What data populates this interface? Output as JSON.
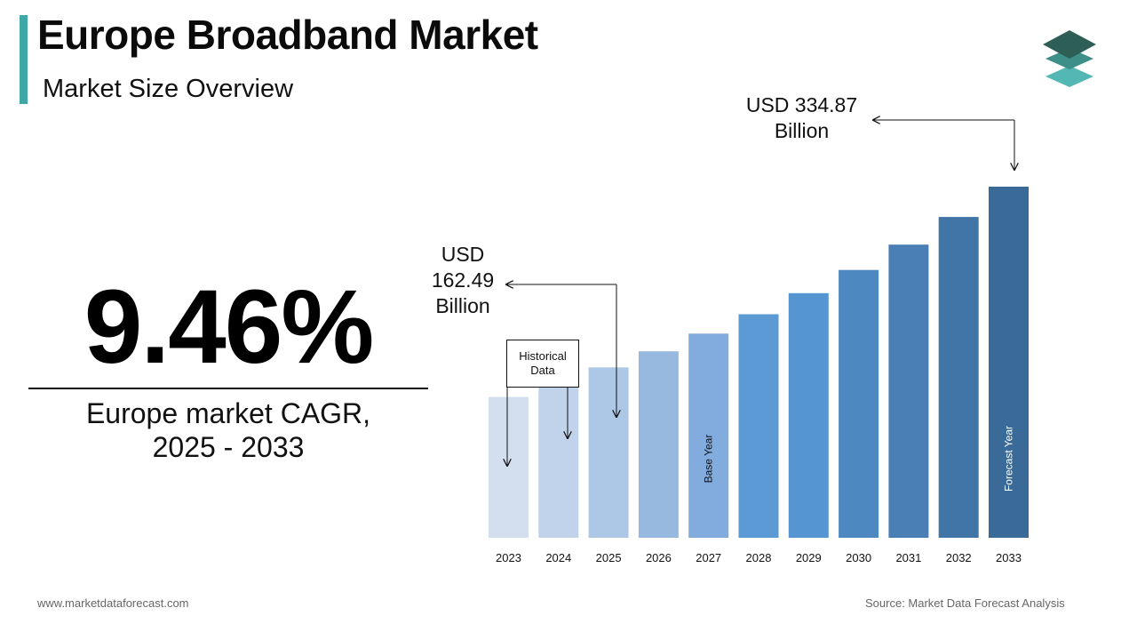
{
  "header": {
    "title": "Europe Broadband Market",
    "subtitle": "Market Size Overview"
  },
  "colors": {
    "accent": "#3fa7a8",
    "bars": [
      "#d3deee",
      "#c0d3eb",
      "#adc7e6",
      "#98b9df",
      "#82acde",
      "#5b9ad5",
      "#5595d2",
      "#4e88c0",
      "#4a7fb6",
      "#4275a7",
      "#3a6a98"
    ]
  },
  "cagr": {
    "value": "9.46%",
    "label_line1": "Europe market CAGR,",
    "label_line2": "2025 - 2033"
  },
  "callouts": {
    "end_line1": "USD 334.87",
    "end_line2": "Billion",
    "start_line1": "USD",
    "start_line2": "162.49",
    "start_line3": "Billion",
    "historical_line1": "Historical",
    "historical_line2": "Data"
  },
  "chart_data": {
    "type": "bar",
    "categories": [
      "2023",
      "2024",
      "2025",
      "2026",
      "2027",
      "2028",
      "2029",
      "2030",
      "2031",
      "2032",
      "2033"
    ],
    "values": [
      134.3,
      148.1,
      162.49,
      177.9,
      194.7,
      213.2,
      233.3,
      255.4,
      279.6,
      306.0,
      334.87
    ],
    "annotations": {
      "2027": "Base Year",
      "2033": "Forecast Year"
    },
    "ylim": [
      0,
      340
    ],
    "title": "",
    "xlabel": "",
    "ylabel": ""
  },
  "footer": {
    "website": "www.marketdataforecast.com",
    "source": "Source: Market Data Forecast Analysis"
  }
}
